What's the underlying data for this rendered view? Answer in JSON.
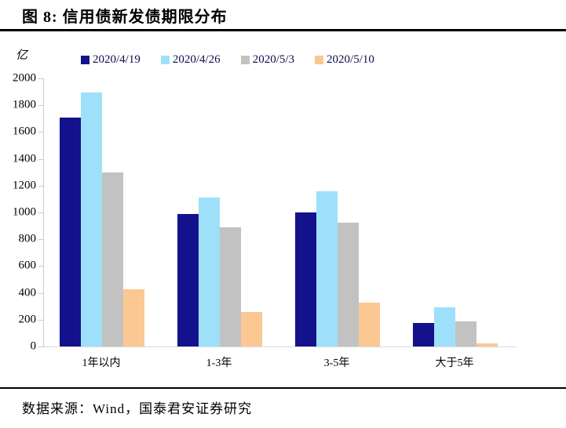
{
  "figure": {
    "title": "图 8:  信用债新发债期限分布"
  },
  "chart_data": {
    "type": "bar",
    "title": "信用债新发债期限分布",
    "unit_label": "亿",
    "xlabel": "",
    "ylabel": "亿",
    "categories": [
      "1年以内",
      "1-3年",
      "3-5年",
      "大于5年"
    ],
    "series": [
      {
        "name": "2020/4/19",
        "color": "#13128c",
        "values": [
          1710,
          990,
          1000,
          175
        ]
      },
      {
        "name": "2020/4/26",
        "color": "#9ee0fa",
        "values": [
          1895,
          1110,
          1160,
          290
        ]
      },
      {
        "name": "2020/5/3",
        "color": "#c2c2c2",
        "values": [
          1300,
          890,
          925,
          190
        ]
      },
      {
        "name": "2020/5/10",
        "color": "#fbc793",
        "values": [
          425,
          260,
          330,
          25
        ]
      }
    ],
    "ylim": [
      0,
      2000
    ],
    "y_ticks": [
      2000,
      1800,
      1600,
      1400,
      1200,
      1000,
      800,
      600,
      400,
      200,
      0
    ],
    "grid": false,
    "legend_position": "top"
  },
  "footer": {
    "source": "数据来源：Wind，国泰君安证券研究"
  }
}
